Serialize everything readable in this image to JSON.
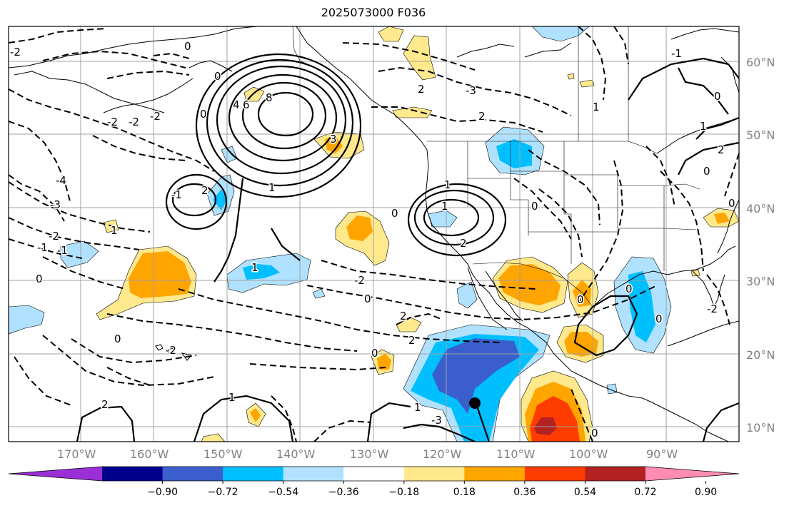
{
  "title": "2025073000 F036",
  "map": {
    "lat_labels": [
      "60°N",
      "50°N",
      "40°N",
      "30°N",
      "20°N",
      "10°N"
    ],
    "lon_labels": [
      "170°W",
      "160°W",
      "150°W",
      "140°W",
      "130°W",
      "120°W",
      "110°W",
      "100°W",
      "90°W"
    ],
    "contour_labels": [
      "-2",
      "-2",
      "-4",
      "-3",
      "-2",
      "-1",
      "0",
      "-2",
      "-2",
      "0",
      "0",
      "0",
      "4",
      "6",
      "8",
      "3",
      "1",
      "2",
      "-1",
      "1",
      "1",
      "0",
      "1",
      "2",
      "2",
      "2",
      "-3",
      "-2",
      "0",
      "2",
      "2",
      "0",
      "1",
      "-3",
      "2",
      "1",
      "0",
      "0",
      "0",
      "0",
      "1",
      "2",
      "0",
      "-2",
      "0",
      "1",
      "0",
      "-2",
      "0",
      "-1",
      "1",
      "0",
      "-1"
    ],
    "marker": "storm-center"
  },
  "colorbar": {
    "tick_labels": [
      "−0.90",
      "−0.72",
      "−0.54",
      "−0.36",
      "−0.18",
      "0.18",
      "0.36",
      "0.54",
      "0.72",
      "0.90"
    ],
    "colors": [
      "#9a2fd6",
      "#00008c",
      "#3a5fcd",
      "#00bfff",
      "#b0e2ff",
      "#ffffff",
      "#ffe98c",
      "#ffa500",
      "#ff3c00",
      "#b22222",
      "#ff8cb4"
    ]
  }
}
